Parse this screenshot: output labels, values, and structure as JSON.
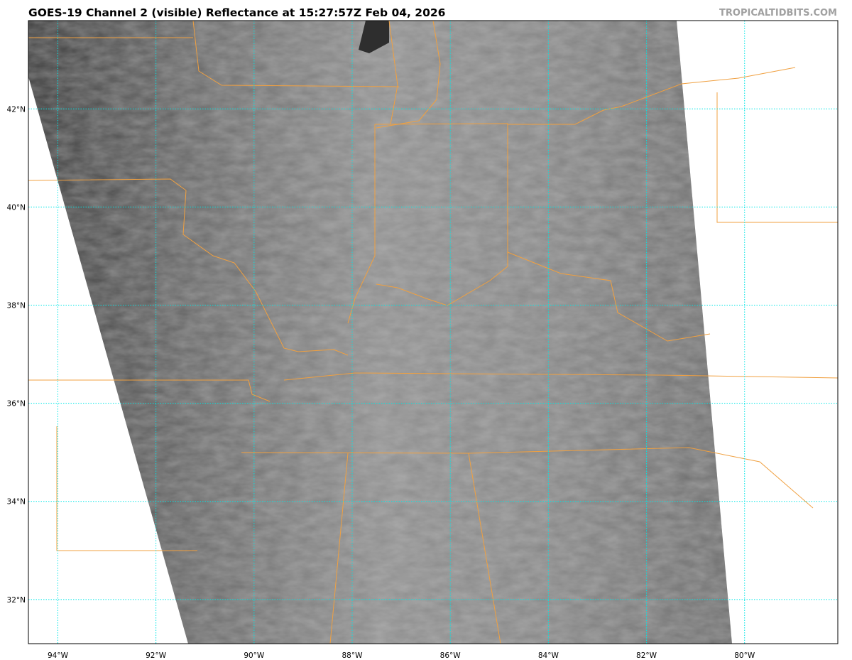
{
  "title": "GOES-19 Channel 2 (visible) Reflectance at 15:27:57Z Feb 04, 2026",
  "credit": "TROPICALTIDBITS.COM",
  "map": {
    "projection_extent": {
      "lon": [
        -94.6,
        -78.1
      ],
      "lat": [
        31.1,
        43.8
      ]
    },
    "gridlines": {
      "on": true,
      "color": "#00e5e5",
      "style": "dotted"
    },
    "boundary_color": "#f0a040",
    "lon_ticks": [
      "94°W",
      "92°W",
      "90°W",
      "88°W",
      "86°W",
      "84°W",
      "82°W",
      "80°W"
    ],
    "lat_ticks": [
      "42°N",
      "40°N",
      "38°N",
      "36°N",
      "34°N",
      "32°N"
    ]
  }
}
